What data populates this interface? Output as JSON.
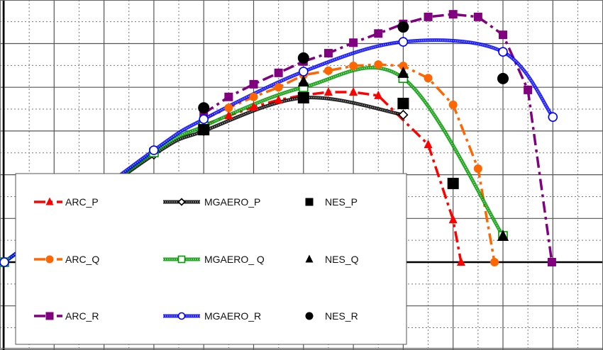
{
  "chart_data": {
    "type": "line",
    "xlim": [
      0,
      12
    ],
    "ylim": [
      -2,
      6
    ],
    "grid": true,
    "grid_major_step": 1,
    "grid_minor_step": 0.5,
    "zero_line": true,
    "legend_position": "bottom-left",
    "series": [
      {
        "name": "ARC_P",
        "color": "#ff0000",
        "marker": "triangle",
        "line": "dash-dot",
        "smooth": false,
        "x": [
          4.0,
          4.5,
          5.0,
          5.5,
          6.0,
          6.5,
          7.0,
          7.5,
          8.5,
          9.0,
          9.16
        ],
        "y": [
          3.14,
          3.35,
          3.55,
          3.71,
          3.82,
          3.89,
          3.89,
          3.81,
          2.69,
          0.97,
          0
        ]
      },
      {
        "name": "ARC_Q",
        "color": "#ff6600",
        "marker": "circle",
        "line": "dash-dot",
        "smooth": false,
        "x": [
          4.0,
          4.5,
          5.0,
          5.5,
          6.0,
          6.5,
          7.0,
          7.5,
          8.0,
          8.5,
          9.0,
          9.5,
          9.83
        ],
        "y": [
          3.27,
          3.53,
          3.78,
          4.0,
          4.28,
          4.38,
          4.49,
          4.52,
          4.49,
          4.21,
          3.6,
          2.14,
          0
        ]
      },
      {
        "name": "ARC_R",
        "color": "#800080",
        "marker": "square",
        "line": "dash-dot",
        "smooth": false,
        "x": [
          4.0,
          4.5,
          5.0,
          5.5,
          6.0,
          6.5,
          7.0,
          7.5,
          8.0,
          8.5,
          9.0,
          9.5,
          10.0,
          10.5,
          10.98
        ],
        "y": [
          3.4,
          3.78,
          4.07,
          4.33,
          4.59,
          4.78,
          5.02,
          5.23,
          5.45,
          5.61,
          5.67,
          5.61,
          5.2,
          3.94,
          0
        ]
      },
      {
        "name": "MGAERO_P",
        "color": "#000000",
        "marker": "diamond-open",
        "line": "hatched",
        "smooth": true,
        "x": [
          0,
          3,
          4,
          6,
          8
        ],
        "y": [
          0,
          2.46,
          3.0,
          3.76,
          3.37
        ]
      },
      {
        "name": "MGAERO_ Q",
        "color": "#009900",
        "marker": "square-open",
        "line": "hatched",
        "smooth": true,
        "x": [
          0,
          3,
          4,
          6,
          8,
          10
        ],
        "y": [
          0,
          2.51,
          3.11,
          4.0,
          4.21,
          0.6
        ]
      },
      {
        "name": "MGAERO_R",
        "color": "#0000ff",
        "marker": "circle-open",
        "line": "hatched",
        "smooth": true,
        "x": [
          0,
          3,
          4,
          6,
          8,
          10,
          11
        ],
        "y": [
          0,
          2.56,
          3.27,
          4.36,
          5.04,
          4.81,
          3.32
        ]
      },
      {
        "name": "NES_P",
        "color": "#000000",
        "marker": "square",
        "line": "none",
        "x": [
          4,
          6,
          8,
          9
        ],
        "y": [
          3.03,
          3.76,
          3.63,
          1.8
        ]
      },
      {
        "name": "NES_Q",
        "color": "#000000",
        "marker": "triangle",
        "line": "none",
        "x": [
          6,
          8,
          10
        ],
        "y": [
          4.13,
          4.33,
          0.6
        ]
      },
      {
        "name": "NES_R",
        "color": "#000000",
        "marker": "circle",
        "line": "none",
        "x": [
          4,
          6,
          8,
          10
        ],
        "y": [
          3.53,
          4.67,
          5.38,
          4.2
        ]
      }
    ]
  }
}
